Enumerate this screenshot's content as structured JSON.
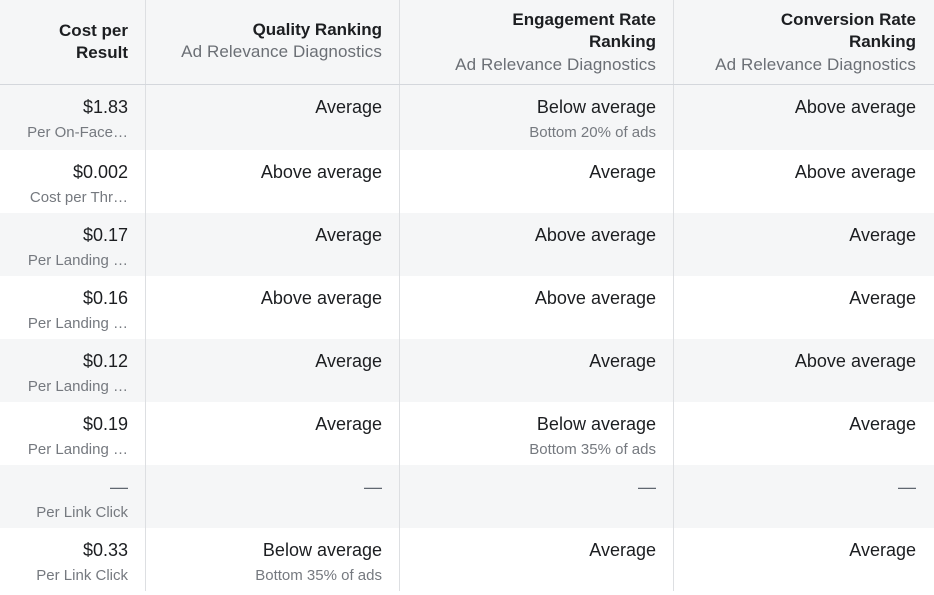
{
  "header": {
    "col1": {
      "title_line1": "Cost per",
      "title_line2": "Result"
    },
    "col2": {
      "title": "Quality Ranking",
      "subtitle": "Ad Relevance Diagnostics"
    },
    "col3": {
      "title_line1": "Engagement Rate",
      "title_line2": "Ranking",
      "subtitle": "Ad Relevance Diagnostics"
    },
    "col4": {
      "title_line1": "Conversion Rate",
      "title_line2": "Ranking",
      "subtitle": "Ad Relevance Diagnostics"
    }
  },
  "rows": [
    {
      "cost": "$1.83",
      "cost_type": "Per On-Face…",
      "quality": "Average",
      "quality_note": "",
      "engagement": "Below average",
      "engagement_note": "Bottom 20% of ads",
      "conversion": "Above average"
    },
    {
      "cost": "$0.002",
      "cost_type": "Cost per Thr…",
      "quality": "Above average",
      "quality_note": "",
      "engagement": "Average",
      "engagement_note": "",
      "conversion": "Above average"
    },
    {
      "cost": "$0.17",
      "cost_type": "Per Landing …",
      "quality": "Average",
      "quality_note": "",
      "engagement": "Above average",
      "engagement_note": "",
      "conversion": "Average"
    },
    {
      "cost": "$0.16",
      "cost_type": "Per Landing …",
      "quality": "Above average",
      "quality_note": "",
      "engagement": "Above average",
      "engagement_note": "",
      "conversion": "Average"
    },
    {
      "cost": "$0.12",
      "cost_type": "Per Landing …",
      "quality": "Average",
      "quality_note": "",
      "engagement": "Average",
      "engagement_note": "",
      "conversion": "Above average"
    },
    {
      "cost": "$0.19",
      "cost_type": "Per Landing …",
      "quality": "Average",
      "quality_note": "",
      "engagement": "Below average",
      "engagement_note": "Bottom 35% of ads",
      "conversion": "Average"
    },
    {
      "cost": "—",
      "cost_type": "Per Link Click",
      "quality": "—",
      "quality_note": "",
      "engagement": "—",
      "engagement_note": "",
      "conversion": "—"
    },
    {
      "cost": "$0.33",
      "cost_type": "Per Link Click",
      "quality": "Below average",
      "quality_note": "Bottom 35% of ads",
      "engagement": "Average",
      "engagement_note": "",
      "conversion": "Average"
    }
  ]
}
